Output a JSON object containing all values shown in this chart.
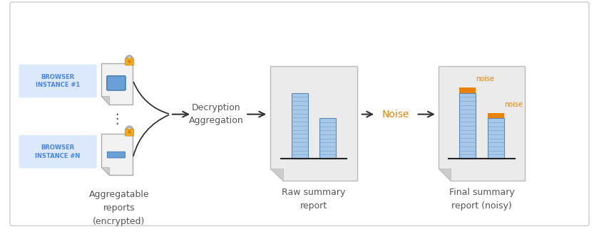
{
  "bg_color": "#ffffff",
  "border_color": "#cccccc",
  "blue_label_color": "#4a86e8",
  "blue_box_fill": "#dce8fc",
  "doc_fill": "#f2f2f2",
  "doc_border": "#aaaaaa",
  "bar_fill": "#a8c8e8",
  "bar_border": "#5588bb",
  "bar_line_color": "#78a8d0",
  "orange_color": "#e8820a",
  "noise_color": "#e8820a",
  "lock_body_fill": "#f5a623",
  "lock_shackle_color": "#b0b0b0",
  "arrow_color": "#333333",
  "text_color": "#555555",
  "title1": "Aggregatable\nreports\n(encrypted)",
  "title2": "Decryption\nAggregation",
  "title3": "Raw summary\nreport",
  "title4": "Noise",
  "title5": "Final summary\nreport (noisy)",
  "label1": "BROWSER\nINSTANCE #1",
  "label2": "BROWSER\nINSTANCE #N",
  "noise_text": "noise",
  "screen_fill": "#6aa0d8",
  "screen_border": "#4477aa"
}
